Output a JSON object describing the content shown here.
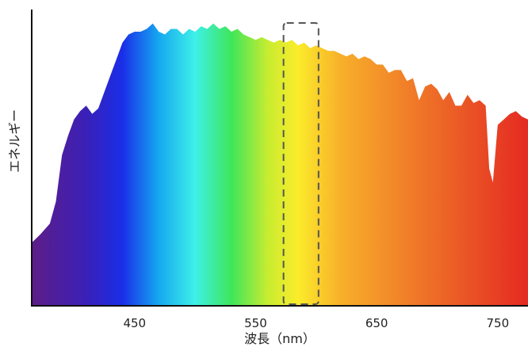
{
  "chart_data": {
    "type": "area",
    "title": "",
    "xlabel": "波長（nm）",
    "ylabel": "エネルギー",
    "xlim": [
      365,
      775
    ],
    "ylim": [
      0,
      1
    ],
    "xticks": [
      450,
      550,
      650,
      750
    ],
    "grid": false,
    "legend": "none",
    "highlight_range": [
      575,
      600
    ],
    "gradient_stops": [
      {
        "wavelength": 370,
        "color": "#5a1e8c"
      },
      {
        "wavelength": 410,
        "color": "#3a20b8"
      },
      {
        "wavelength": 440,
        "color": "#1a2ee8"
      },
      {
        "wavelength": 470,
        "color": "#15a8f0"
      },
      {
        "wavelength": 500,
        "color": "#3ef0e8"
      },
      {
        "wavelength": 530,
        "color": "#3ee65a"
      },
      {
        "wavelength": 560,
        "color": "#c8ec30"
      },
      {
        "wavelength": 585,
        "color": "#fbec2a"
      },
      {
        "wavelength": 620,
        "color": "#f8b02a"
      },
      {
        "wavelength": 680,
        "color": "#f07a28"
      },
      {
        "wavelength": 775,
        "color": "#e42a22"
      }
    ],
    "series": [
      {
        "x": [
          365,
          372,
          380,
          385,
          390,
          395,
          400,
          405,
          410,
          415,
          420,
          425,
          430,
          435,
          440,
          445,
          450,
          455,
          460,
          465,
          470,
          475,
          480,
          485,
          490,
          495,
          500,
          505,
          510,
          515,
          520,
          525,
          530,
          535,
          540,
          545,
          550,
          555,
          560,
          565,
          570,
          575,
          580,
          585,
          590,
          595,
          600,
          605,
          610,
          615,
          620,
          625,
          630,
          635,
          640,
          645,
          650,
          655,
          660,
          665,
          670,
          675,
          680,
          685,
          690,
          695,
          700,
          705,
          710,
          715,
          720,
          725,
          730,
          735,
          740,
          743,
          746,
          750,
          755,
          760,
          765,
          770,
          775
        ],
        "values": [
          0.23,
          0.26,
          0.3,
          0.38,
          0.55,
          0.62,
          0.68,
          0.71,
          0.73,
          0.7,
          0.72,
          0.78,
          0.84,
          0.9,
          0.96,
          0.99,
          1.0,
          1.0,
          1.01,
          1.03,
          1.0,
          0.99,
          1.01,
          1.01,
          0.99,
          1.01,
          1.0,
          1.02,
          1.01,
          1.03,
          1.01,
          1.02,
          1.0,
          1.01,
          0.99,
          0.98,
          0.97,
          0.98,
          0.97,
          0.96,
          0.97,
          0.96,
          0.97,
          0.95,
          0.96,
          0.94,
          0.95,
          0.94,
          0.93,
          0.93,
          0.92,
          0.91,
          0.92,
          0.9,
          0.91,
          0.9,
          0.88,
          0.88,
          0.85,
          0.86,
          0.86,
          0.82,
          0.83,
          0.75,
          0.8,
          0.81,
          0.79,
          0.75,
          0.78,
          0.73,
          0.73,
          0.77,
          0.74,
          0.75,
          0.73,
          0.5,
          0.45,
          0.66,
          0.68,
          0.7,
          0.71,
          0.69,
          0.68
        ]
      }
    ]
  }
}
